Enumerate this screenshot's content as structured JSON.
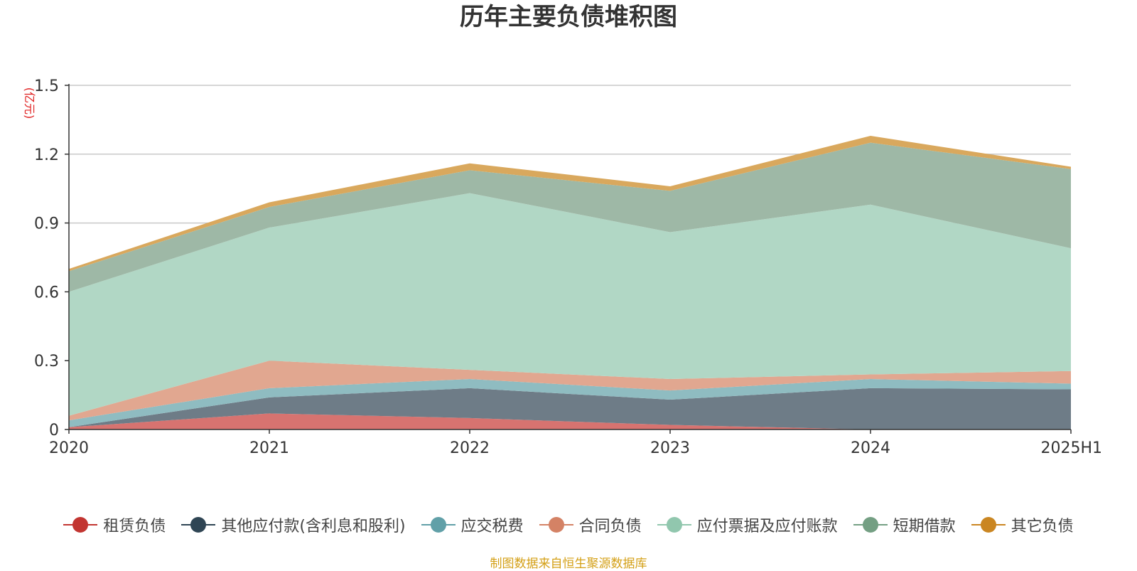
{
  "chart_data": {
    "type": "area",
    "stacked": true,
    "title": "历年主要负债堆积图",
    "ylabel": "(亿元)",
    "xlabel": "",
    "categories": [
      "2020",
      "2021",
      "2022",
      "2023",
      "2024",
      "2025H1"
    ],
    "ylim": [
      0,
      1.5
    ],
    "yticks": [
      0,
      0.3,
      0.6,
      0.9,
      1.2,
      1.5
    ],
    "ytick_labels": [
      "0",
      "0.3",
      "0.6",
      "0.9",
      "1.2",
      "1.5"
    ],
    "grid": true,
    "legend_position": "bottom",
    "series": [
      {
        "name": "租赁负债",
        "values": [
          0.01,
          0.07,
          0.05,
          0.02,
          0.0,
          0.0
        ],
        "color": "#c23531",
        "fill": "#d77370"
      },
      {
        "name": "其他应付款(含利息和股利)",
        "values": [
          0.0,
          0.07,
          0.13,
          0.11,
          0.18,
          0.175
        ],
        "color": "#2f4554",
        "fill": "#6e7c87"
      },
      {
        "name": "应交税费",
        "values": [
          0.03,
          0.04,
          0.04,
          0.04,
          0.04,
          0.025
        ],
        "color": "#61a0a8",
        "fill": "#8fbcc1"
      },
      {
        "name": "合同负债",
        "values": [
          0.02,
          0.12,
          0.04,
          0.05,
          0.02,
          0.055
        ],
        "color": "#d48265",
        "fill": "#e1a790"
      },
      {
        "name": "应付票据及应付账款",
        "values": [
          0.54,
          0.58,
          0.77,
          0.64,
          0.74,
          0.535
        ],
        "color": "#91c7ae",
        "fill": "#b1d7c5"
      },
      {
        "name": "短期借款",
        "values": [
          0.09,
          0.09,
          0.1,
          0.18,
          0.27,
          0.345
        ],
        "color": "#749f83",
        "fill": "#9eb8a6"
      },
      {
        "name": "其它负债",
        "values": [
          0.01,
          0.02,
          0.03,
          0.02,
          0.03,
          0.01
        ],
        "color": "#ca8622",
        "fill": "#d9a85d"
      }
    ]
  },
  "source_text": "制图数据来自恒生聚源数据库"
}
